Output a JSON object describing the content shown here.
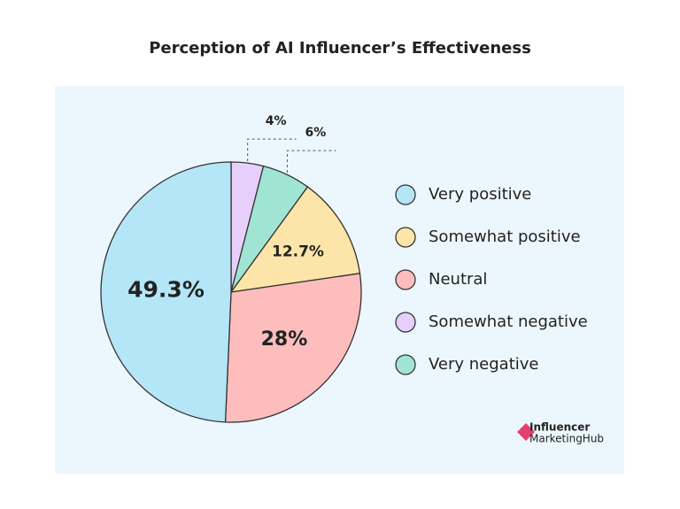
{
  "chart_data": {
    "type": "pie",
    "title": "Perception of AI Influencer’s Effectiveness",
    "categories": [
      "Very positive",
      "Somewhat positive",
      "Neutral",
      "Somewhat negative",
      "Very negative"
    ],
    "values": [
      49.3,
      12.7,
      28,
      4,
      6
    ],
    "value_labels": [
      "49.3%",
      "12.7%",
      "28%",
      "4%",
      "6%"
    ],
    "colors": [
      "#b5e6f7",
      "#fde4a8",
      "#fdbdbd",
      "#e6cffb",
      "#a0e4d3"
    ],
    "legend": "right"
  },
  "brand": {
    "line1": "Influencer",
    "line2": "MarketingHub"
  }
}
